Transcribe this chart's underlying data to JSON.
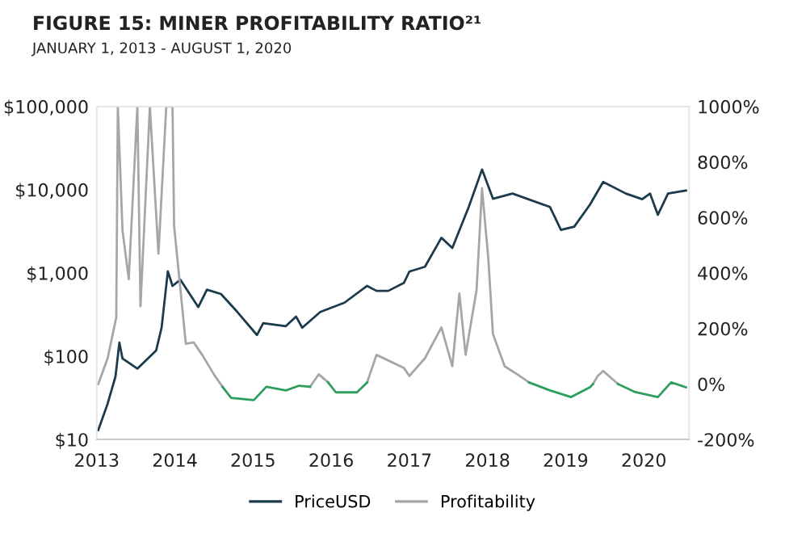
{
  "chart_data": {
    "type": "line",
    "title": "FIGURE 15: MINER PROFITABILITY RATIO²¹",
    "subtitle": "JANUARY 1, 2013 - AUGUST 1, 2020",
    "xlim": [
      2013,
      2020.58
    ],
    "xticks": [
      2013,
      2014,
      2015,
      2016,
      2017,
      2018,
      2019,
      2020
    ],
    "log": "y",
    "ylim": [
      10,
      100000
    ],
    "yticks": [
      {
        "value": 10,
        "label": "$10"
      },
      {
        "value": 100,
        "label": "$100"
      },
      {
        "value": 1000,
        "label": "$1,000"
      },
      {
        "value": 10000,
        "label": "$10,000"
      },
      {
        "value": 100000,
        "label": "$100,000"
      }
    ],
    "y2lim": [
      -200,
      1000
    ],
    "y2ticks": [
      {
        "value": -200,
        "label": "-200%"
      },
      {
        "value": 0,
        "label": "0%"
      },
      {
        "value": 200,
        "label": "200%"
      },
      {
        "value": 400,
        "label": "400%"
      },
      {
        "value": 600,
        "label": "600%"
      },
      {
        "value": 800,
        "label": "800%"
      },
      {
        "value": 1000,
        "label": "1000%"
      }
    ],
    "grid": false,
    "legend": "bottom",
    "series": [
      {
        "name": "PriceUSD",
        "color": "#1b3a4b",
        "x": [
          2013.02,
          2013.14,
          2013.24,
          2013.29,
          2013.33,
          2013.52,
          2013.76,
          2013.83,
          2013.91,
          2013.97,
          2014.07,
          2014.3,
          2014.41,
          2014.59,
          2014.8,
          2015.05,
          2015.13,
          2015.42,
          2015.55,
          2015.63,
          2015.86,
          2016.17,
          2016.46,
          2016.58,
          2016.73,
          2016.93,
          2017.0,
          2017.2,
          2017.41,
          2017.55,
          2017.76,
          2017.93,
          2018.07,
          2018.32,
          2018.8,
          2018.94,
          2019.11,
          2019.31,
          2019.48,
          2019.77,
          2019.98,
          2020.08,
          2020.18,
          2020.31,
          2020.54
        ],
        "values": [
          13,
          27,
          57,
          146,
          94,
          71,
          117,
          220,
          1050,
          700,
          830,
          390,
          630,
          560,
          340,
          180,
          250,
          230,
          300,
          220,
          340,
          440,
          700,
          610,
          610,
          760,
          1040,
          1190,
          2650,
          2000,
          6200,
          17500,
          7800,
          9000,
          6200,
          3300,
          3600,
          6600,
          12400,
          9000,
          7700,
          9000,
          5000,
          9000,
          9800
        ]
      },
      {
        "name": "Profitability",
        "color": "#a6a6a6",
        "axis": "y2",
        "x": [
          2013.02,
          2013.14,
          2013.25,
          2013.27,
          2013.33,
          2013.41,
          2013.52,
          2013.56,
          2013.68,
          2013.79,
          2013.89,
          2013.97,
          2013.99,
          2014.14,
          2014.24,
          2014.35,
          2014.51,
          2014.61,
          2015.2,
          2015.73,
          2015.84,
          2015.96,
          2016.2,
          2016.46,
          2016.58,
          2016.93,
          2017.0,
          2017.2,
          2017.41,
          2017.55,
          2017.64,
          2017.72,
          2017.86,
          2017.93,
          2018.01,
          2018.07,
          2018.22,
          2018.38,
          2018.53,
          2019.0,
          2019.35,
          2019.41,
          2019.48,
          2019.67
        ],
        "values": [
          0,
          93,
          240,
          1000,
          553,
          378,
          1000,
          280,
          1000,
          470,
          1000,
          1000,
          570,
          145,
          150,
          105,
          30,
          -10,
          null,
          -10,
          35,
          6,
          null,
          6,
          105,
          58,
          29,
          93,
          204,
          64,
          326,
          105,
          338,
          705,
          454,
          180,
          64,
          35,
          6,
          null,
          0,
          29,
          47,
          0
        ]
      },
      {
        "color": "#2e9e5e",
        "axis": "y2",
        "x": [
          2014.61,
          2014.72,
          2015.01,
          2015.17,
          2015.42,
          2015.59,
          2015.73,
          2015.85,
          2015.96,
          2016.06,
          2016.33,
          2016.46,
          2016.5,
          2018.53,
          2018.8,
          2019.07,
          2019.31,
          2019.35,
          2019.5,
          2019.67,
          2019.89,
          2020.18,
          2020.35,
          2020.54
        ],
        "values": [
          -10,
          -50,
          -58,
          -10,
          -23,
          -6,
          -10,
          null,
          6,
          -30,
          -30,
          6,
          null,
          6,
          -23,
          -47,
          -12,
          0,
          null,
          0,
          -29,
          -47,
          6,
          -12
        ]
      }
    ]
  }
}
